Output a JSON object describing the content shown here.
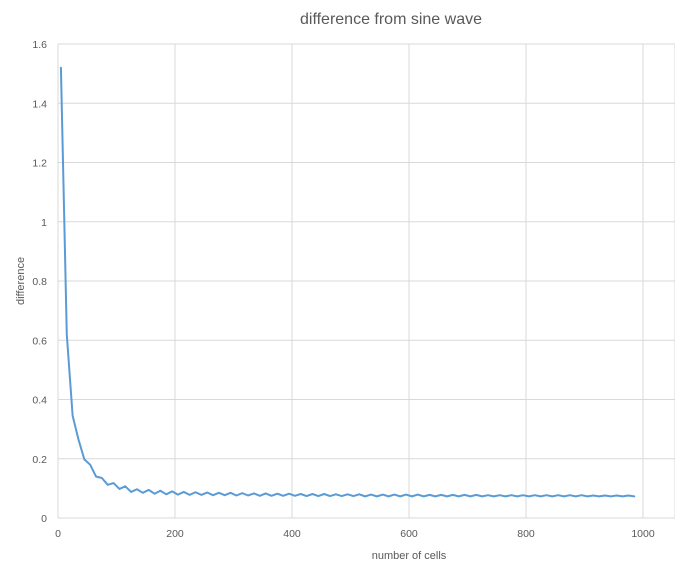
{
  "chart_data": {
    "type": "line",
    "title": "difference from sine wave",
    "xlabel": "number of cells",
    "ylabel": "difference",
    "xlim": [
      0,
      1000
    ],
    "ylim": [
      0,
      1.6
    ],
    "x_ticks": [
      0,
      200,
      400,
      600,
      800,
      1000
    ],
    "y_ticks": [
      0,
      0.2,
      0.4,
      0.6,
      0.8,
      1,
      1.2,
      1.4,
      1.6
    ],
    "x_tick_labels": [
      "0",
      "200",
      "400",
      "600",
      "800",
      "1000"
    ],
    "y_tick_labels": [
      "0",
      "0.2",
      "0.4",
      "0.6",
      "0.8",
      "1",
      "1.2",
      "1.4",
      "1.6"
    ],
    "grid": true,
    "legend": "none",
    "series": [
      {
        "color": "#5b9bd5",
        "x": [
          5,
          15,
          25,
          35,
          45,
          55,
          65,
          75,
          85,
          95,
          105,
          115,
          125,
          135,
          145,
          155,
          165,
          175,
          185,
          195,
          205,
          215,
          225,
          235,
          245,
          255,
          265,
          275,
          285,
          295,
          305,
          315,
          325,
          335,
          345,
          355,
          365,
          375,
          385,
          395,
          405,
          415,
          425,
          435,
          445,
          455,
          465,
          475,
          485,
          495,
          505,
          515,
          525,
          535,
          545,
          555,
          565,
          575,
          585,
          595,
          605,
          615,
          625,
          635,
          645,
          655,
          665,
          675,
          685,
          695,
          705,
          715,
          725,
          735,
          745,
          755,
          765,
          775,
          785,
          795,
          805,
          815,
          825,
          835,
          845,
          855,
          865,
          875,
          885,
          895,
          905,
          915,
          925,
          935,
          945,
          955,
          965,
          975,
          985
        ],
        "values": [
          1.52,
          0.62,
          0.345,
          0.265,
          0.198,
          0.18,
          0.14,
          0.135,
          0.112,
          0.118,
          0.098,
          0.107,
          0.088,
          0.097,
          0.085,
          0.095,
          0.082,
          0.092,
          0.08,
          0.09,
          0.079,
          0.088,
          0.078,
          0.087,
          0.078,
          0.086,
          0.077,
          0.085,
          0.077,
          0.085,
          0.076,
          0.084,
          0.076,
          0.083,
          0.075,
          0.083,
          0.075,
          0.082,
          0.075,
          0.082,
          0.075,
          0.081,
          0.074,
          0.081,
          0.074,
          0.081,
          0.074,
          0.08,
          0.074,
          0.08,
          0.074,
          0.08,
          0.073,
          0.079,
          0.073,
          0.079,
          0.073,
          0.079,
          0.073,
          0.079,
          0.073,
          0.079,
          0.073,
          0.078,
          0.073,
          0.078,
          0.073,
          0.078,
          0.073,
          0.078,
          0.073,
          0.078,
          0.073,
          0.077,
          0.073,
          0.077,
          0.073,
          0.077,
          0.073,
          0.077,
          0.073,
          0.077,
          0.073,
          0.077,
          0.073,
          0.077,
          0.073,
          0.077,
          0.073,
          0.077,
          0.073,
          0.076,
          0.073,
          0.076,
          0.073,
          0.076,
          0.073,
          0.076,
          0.073
        ]
      }
    ]
  }
}
